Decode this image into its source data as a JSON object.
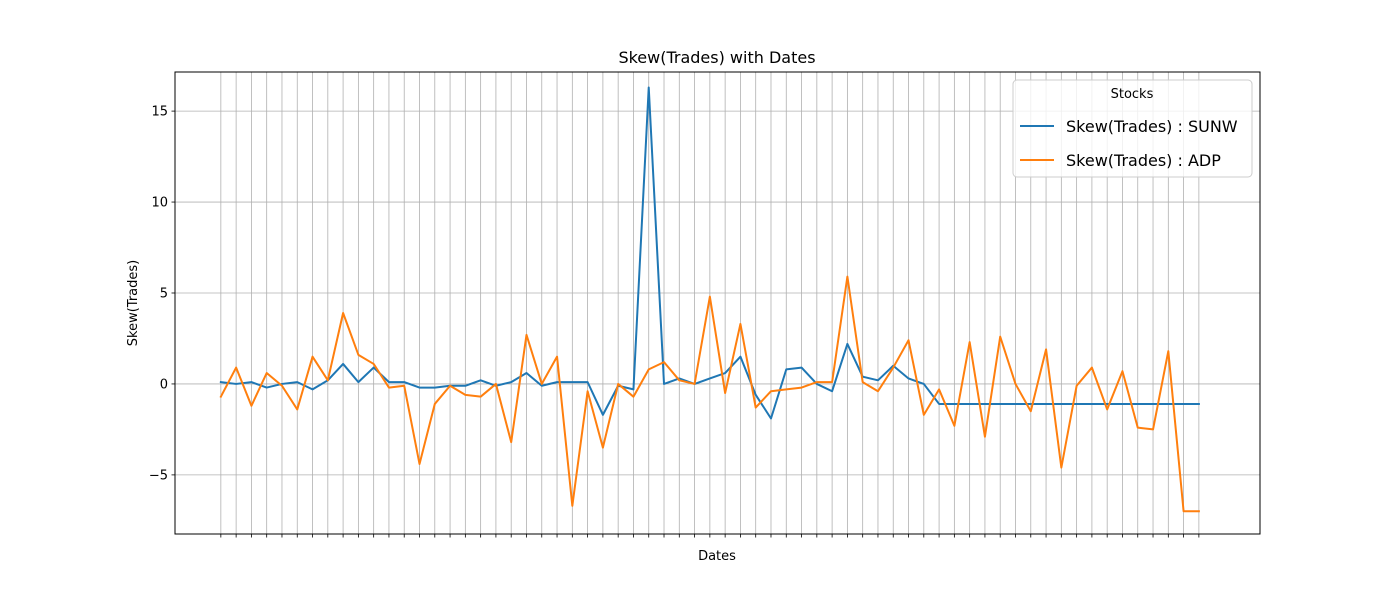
{
  "chart_data": {
    "type": "line",
    "title": "Skew(Trades) with Dates",
    "xlabel": "Dates",
    "ylabel": "Skew(Trades)",
    "xlim": [
      -3,
      68
    ],
    "ylim": [
      -8.25,
      17.15
    ],
    "yticks": [
      -5,
      0,
      5,
      10,
      15
    ],
    "ytick_labels": [
      "−5",
      "0",
      "5",
      "10",
      "15"
    ],
    "x_count": 65,
    "grid": true,
    "legend": {
      "title": "Stocks",
      "placement": "upper right"
    },
    "series": [
      {
        "name": "Skew(Trades) : SUNW",
        "color": "#1f77b4",
        "values": [
          0.1,
          0.0,
          0.1,
          -0.2,
          0.0,
          0.1,
          -0.3,
          0.2,
          1.1,
          0.1,
          0.9,
          0.1,
          0.1,
          -0.2,
          -0.2,
          -0.1,
          -0.1,
          0.2,
          -0.1,
          0.1,
          0.6,
          -0.1,
          0.1,
          0.1,
          0.1,
          -1.7,
          -0.1,
          -0.3,
          16.3,
          0.0,
          0.3,
          0.0,
          0.3,
          0.6,
          1.5,
          -0.6,
          -1.9,
          0.8,
          0.9,
          0.0,
          -0.4,
          2.2,
          0.4,
          0.2,
          1.0,
          0.3,
          0.0,
          -1.1,
          -1.1,
          -1.1,
          -1.1,
          -1.1,
          -1.1,
          -1.1,
          -1.1,
          -1.1,
          -1.1,
          -1.1,
          -1.1,
          -1.1,
          -1.1,
          -1.1,
          -1.1,
          -1.1,
          -1.1
        ]
      },
      {
        "name": "Skew(Trades) : ADP",
        "color": "#ff7f0e",
        "values": [
          -0.7,
          0.9,
          -1.2,
          0.6,
          -0.1,
          -1.4,
          1.5,
          0.2,
          3.9,
          1.6,
          1.1,
          -0.2,
          -0.1,
          -4.4,
          -1.1,
          -0.1,
          -0.6,
          -0.7,
          0.0,
          -3.2,
          2.7,
          0.0,
          1.5,
          -6.7,
          -0.4,
          -3.5,
          0.0,
          -0.7,
          0.8,
          1.2,
          0.2,
          0.0,
          4.8,
          -0.5,
          3.3,
          -1.3,
          -0.4,
          -0.3,
          -0.2,
          0.1,
          0.1,
          5.9,
          0.1,
          -0.4,
          0.9,
          2.4,
          -1.7,
          -0.3,
          -2.3,
          2.3,
          -2.9,
          2.6,
          0.0,
          -1.5,
          1.9,
          -4.6,
          -0.1,
          0.9,
          -1.4,
          0.7,
          -2.4,
          -2.5,
          1.8,
          -7.0,
          -7.0
        ]
      }
    ]
  }
}
